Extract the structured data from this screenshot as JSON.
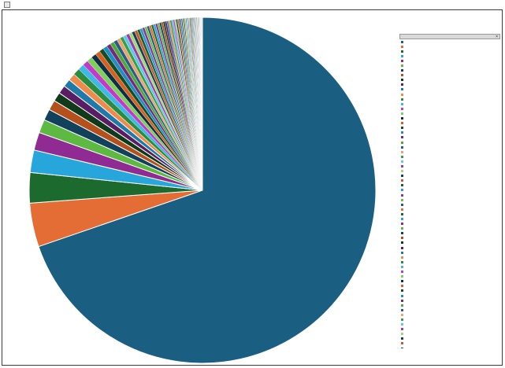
{
  "toolbar": {
    "button_label": ""
  },
  "chart_data": {
    "type": "pie",
    "title": "",
    "legend_position": "right",
    "legend_header": "",
    "slices": [
      {
        "value": 66.5,
        "color": "#1a5e82"
      },
      {
        "value": 3.9,
        "color": "#e36d35"
      },
      {
        "value": 2.7,
        "color": "#1d6a2e"
      },
      {
        "value": 2.0,
        "color": "#27a6dc"
      },
      {
        "value": 1.6,
        "color": "#8f2b93"
      },
      {
        "value": 1.2,
        "color": "#5db942"
      },
      {
        "value": 1.0,
        "color": "#12415c"
      },
      {
        "value": 0.9,
        "color": "#b4501c"
      },
      {
        "value": 0.8,
        "color": "#0f3b1b"
      },
      {
        "value": 0.75,
        "color": "#5a1d64"
      },
      {
        "value": 0.7,
        "color": "#1e7aa8"
      },
      {
        "value": 0.65,
        "color": "#f08a4b"
      },
      {
        "value": 0.6,
        "color": "#2b8c3e"
      },
      {
        "value": 0.55,
        "color": "#3fb8e6"
      },
      {
        "value": 0.5,
        "color": "#c43ac8"
      },
      {
        "value": 0.48,
        "color": "#7fd05a"
      },
      {
        "value": 0.45,
        "color": "#0d2f45"
      },
      {
        "value": 0.43,
        "color": "#d8601f"
      },
      {
        "value": 0.4,
        "color": "#164d24"
      },
      {
        "value": 0.38,
        "color": "#1b8fc6"
      },
      {
        "value": 0.36,
        "color": "#732a7a"
      },
      {
        "value": 0.35,
        "color": "#4fa83a"
      },
      {
        "value": 0.33,
        "color": "#245f86"
      },
      {
        "value": 0.32,
        "color": "#f5a06a"
      },
      {
        "value": 0.3,
        "color": "#33a04a"
      },
      {
        "value": 0.29,
        "color": "#60c6ea"
      },
      {
        "value": 0.28,
        "color": "#a03aa6"
      },
      {
        "value": 0.27,
        "color": "#9bdc74"
      },
      {
        "value": 0.26,
        "color": "#183f5a"
      },
      {
        "value": 0.25,
        "color": "#c85a28"
      },
      {
        "value": 0.24,
        "color": "#205c30"
      },
      {
        "value": 0.23,
        "color": "#2a9bd2"
      },
      {
        "value": 0.22,
        "color": "#88388e"
      },
      {
        "value": 0.21,
        "color": "#6cbf4b"
      },
      {
        "value": 0.2,
        "color": "#1a5e82"
      },
      {
        "value": 0.2,
        "color": "#e36d35"
      },
      {
        "value": 0.19,
        "color": "#1d6a2e"
      },
      {
        "value": 0.19,
        "color": "#27a6dc"
      },
      {
        "value": 0.18,
        "color": "#8f2b93"
      },
      {
        "value": 0.18,
        "color": "#5db942"
      },
      {
        "value": 0.17,
        "color": "#12415c"
      },
      {
        "value": 0.17,
        "color": "#b4501c"
      },
      {
        "value": 0.16,
        "color": "#0f3b1b"
      },
      {
        "value": 0.16,
        "color": "#5a1d64"
      },
      {
        "value": 0.15,
        "color": "#1e7aa8"
      },
      {
        "value": 0.15,
        "color": "#f08a4b"
      },
      {
        "value": 0.14,
        "color": "#2b8c3e"
      },
      {
        "value": 0.14,
        "color": "#3fb8e6"
      },
      {
        "value": 0.13,
        "color": "#c43ac8"
      },
      {
        "value": 0.13,
        "color": "#7fd05a"
      },
      {
        "value": 0.12,
        "color": "#0d2f45"
      },
      {
        "value": 0.12,
        "color": "#d8601f"
      },
      {
        "value": 0.11,
        "color": "#164d24"
      },
      {
        "value": 0.11,
        "color": "#1b8fc6"
      },
      {
        "value": 0.1,
        "color": "#732a7a"
      },
      {
        "value": 0.1,
        "color": "#4fa83a"
      },
      {
        "value": 0.1,
        "color": "#245f86"
      },
      {
        "value": 0.09,
        "color": "#f5a06a"
      },
      {
        "value": 0.09,
        "color": "#33a04a"
      },
      {
        "value": 0.09,
        "color": "#60c6ea"
      },
      {
        "value": 0.08,
        "color": "#a03aa6"
      },
      {
        "value": 0.08,
        "color": "#9bdc74"
      },
      {
        "value": 0.08,
        "color": "#183f5a"
      },
      {
        "value": 0.07,
        "color": "#c85a28"
      },
      {
        "value": 0.07,
        "color": "#205c30"
      },
      {
        "value": 0.07,
        "color": "#2a9bd2"
      },
      {
        "value": 0.06,
        "color": "#88388e"
      },
      {
        "value": 0.06,
        "color": "#6cbf4b"
      },
      {
        "value": 0.06,
        "color": "#1a5e82"
      },
      {
        "value": 0.05,
        "color": "#e36d35"
      },
      {
        "value": 0.05,
        "color": "#1d6a2e"
      },
      {
        "value": 0.05,
        "color": "#27a6dc"
      },
      {
        "value": 0.05,
        "color": "#8f2b93"
      },
      {
        "value": 0.04,
        "color": "#5db942"
      },
      {
        "value": 0.04,
        "color": "#12415c"
      },
      {
        "value": 0.04,
        "color": "#b4501c"
      },
      {
        "value": 0.04,
        "color": "#0f3b1b"
      },
      {
        "value": 0.03,
        "color": "#5a1d64"
      },
      {
        "value": 0.03,
        "color": "#1e7aa8"
      },
      {
        "value": 0.03,
        "color": "#f08a4b"
      },
      {
        "value": 0.03,
        "color": "#2b8c3e"
      },
      {
        "value": 0.03,
        "color": "#3fb8e6"
      },
      {
        "value": 0.02,
        "color": "#c43ac8"
      },
      {
        "value": 0.02,
        "color": "#7fd05a"
      },
      {
        "value": 0.02,
        "color": "#0d2f45"
      },
      {
        "value": 0.02,
        "color": "#d8601f"
      },
      {
        "value": 0.02,
        "color": "#164d24"
      },
      {
        "value": 0.02,
        "color": "#1b8fc6"
      },
      {
        "value": 0.02,
        "color": "#732a7a"
      },
      {
        "value": 0.02,
        "color": "#4fa83a"
      }
    ]
  }
}
